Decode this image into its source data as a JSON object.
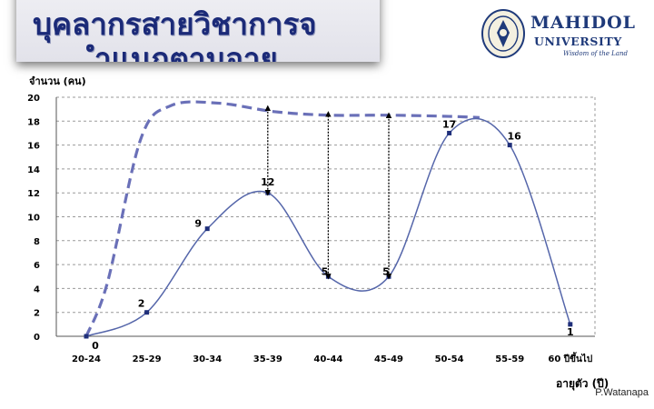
{
  "header": {
    "title_line1": "บุคลากรสายวิชาการจ",
    "title_line2": "ำแนกตามอายุ"
  },
  "logo": {
    "name": "MAHIDOL",
    "university": "UNIVERSITY",
    "tagline": "Wisdom of the Land",
    "seal_icon": "mahidol-seal-icon"
  },
  "credit": "P.Watanapa",
  "chart_data": {
    "type": "line",
    "ylabel": "จำนวน (คน)",
    "xlabel": "อายุตัว (ปี)",
    "categories": [
      "20-24",
      "25-29",
      "30-34",
      "35-39",
      "40-44",
      "45-49",
      "50-54",
      "55-59",
      "60 ปีขึ้นไป"
    ],
    "ylim": [
      0,
      20
    ],
    "yticks": [
      0,
      2,
      4,
      6,
      8,
      10,
      12,
      14,
      16,
      18,
      20
    ],
    "grid": "horizontal-dashed",
    "series": [
      {
        "values": [
          0,
          2,
          9,
          12,
          5,
          5,
          17,
          16,
          1
        ],
        "data_labels": [
          "0",
          "2",
          "9",
          "12",
          "5",
          "5",
          "17",
          "16",
          "1"
        ],
        "color": "#5566aa",
        "style": "solid"
      },
      {
        "x": [
          0,
          0.35,
          0.9,
          1.4,
          2.2,
          3.1,
          4.0,
          5.0,
          6.0,
          6.5
        ],
        "values": [
          0,
          4.5,
          16.5,
          19.3,
          19.5,
          18.8,
          18.5,
          18.5,
          18.4,
          18.3
        ],
        "color": "#6a70b8",
        "style": "dashed"
      }
    ],
    "gap_arrows": [
      {
        "x": 3,
        "from": 12,
        "to": 19.1
      },
      {
        "x": 4,
        "from": 5,
        "to": 18.6
      },
      {
        "x": 5,
        "from": 5,
        "to": 18.5
      }
    ]
  }
}
